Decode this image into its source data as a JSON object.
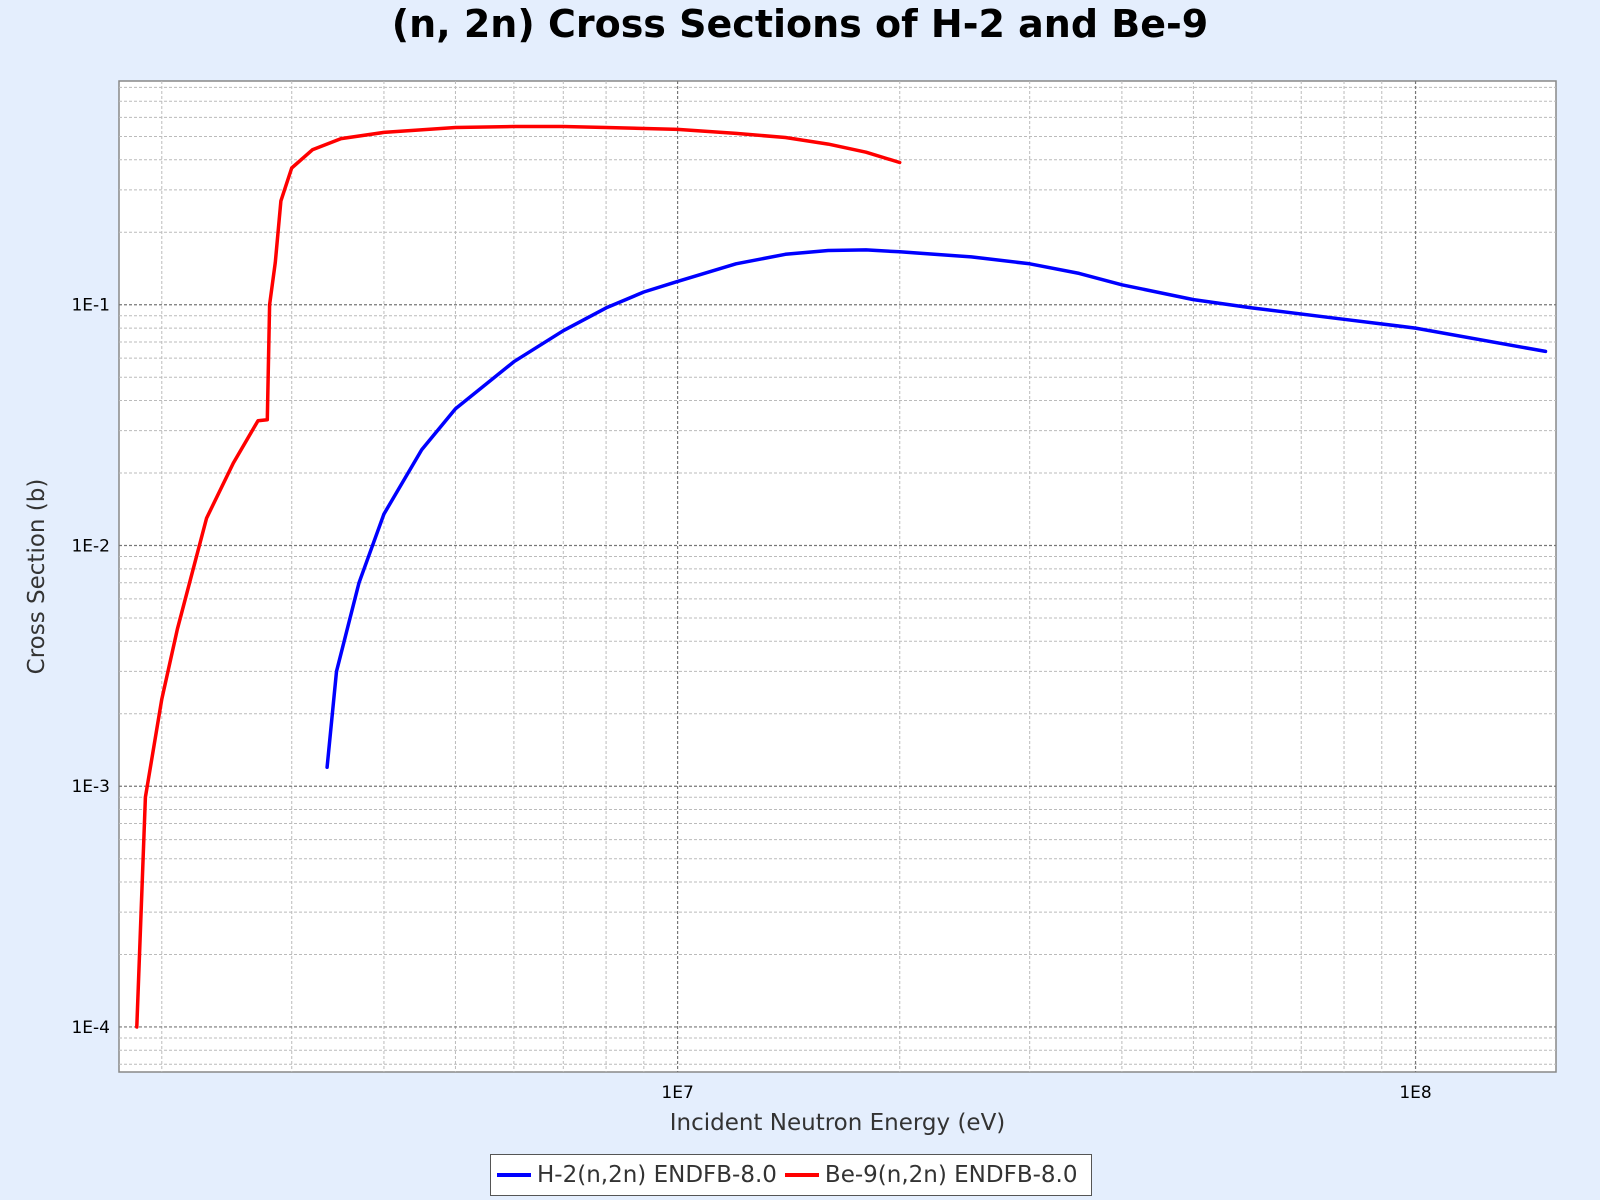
{
  "chart_data": {
    "type": "line",
    "title": "(n, 2n) Cross Sections of H-2 and Be-9",
    "xlabel": "Incident Neutron Energy (eV)",
    "ylabel": "Cross Section (b)",
    "x_scale": "log",
    "y_scale": "log",
    "xlim": [
      1750000.0,
      155000000.0
    ],
    "ylim": [
      6.5e-05,
      0.85
    ],
    "x_ticks": [
      {
        "value": 10000000.0,
        "label": "1E7"
      },
      {
        "value": 100000000.0,
        "label": "1E8"
      }
    ],
    "y_ticks": [
      {
        "value": 0.1,
        "label": "1E-1"
      },
      {
        "value": 0.01,
        "label": "1E-2"
      },
      {
        "value": 0.001,
        "label": "1E-3"
      },
      {
        "value": 0.0001,
        "label": "1E-4"
      }
    ],
    "grid": true,
    "legend_position": "bottom",
    "series": [
      {
        "name": "H-2(n,2n) ENDFB-8.0",
        "color": "#0000FF",
        "x": [
          3350000.0,
          3450000.0,
          3700000.0,
          4000000.0,
          4500000.0,
          5000000.0,
          6000000.0,
          7000000.0,
          8000000.0,
          9000000.0,
          10000000.0,
          12000000.0,
          14000000.0,
          16000000.0,
          18000000.0,
          20000000.0,
          25000000.0,
          30000000.0,
          35000000.0,
          40000000.0,
          50000000.0,
          60000000.0,
          80000000.0,
          100000000.0,
          150000000.0
        ],
        "y": [
          0.0012,
          0.003,
          0.007,
          0.0135,
          0.025,
          0.037,
          0.058,
          0.078,
          0.097,
          0.113,
          0.125,
          0.148,
          0.162,
          0.168,
          0.169,
          0.166,
          0.158,
          0.148,
          0.135,
          0.121,
          0.105,
          0.097,
          0.087,
          0.08,
          0.064
        ]
      },
      {
        "name": "Be-9(n,2n) ENDFB-8.0",
        "color": "#FF0000",
        "x": [
          1850000.0,
          1900000.0,
          2000000.0,
          2100000.0,
          2300000.0,
          2500000.0,
          2700000.0,
          2780000.0,
          2800000.0,
          2850000.0,
          2900000.0,
          3000000.0,
          3200000.0,
          3500000.0,
          4000000.0,
          5000000.0,
          6000000.0,
          7000000.0,
          8000000.0,
          10000000.0,
          12000000.0,
          14000000.0,
          16000000.0,
          18000000.0,
          20000000.0
        ],
        "y": [
          0.0001,
          0.0009,
          0.0023,
          0.0045,
          0.013,
          0.022,
          0.033,
          0.0333,
          0.1,
          0.15,
          0.27,
          0.37,
          0.44,
          0.49,
          0.52,
          0.545,
          0.55,
          0.55,
          0.545,
          0.535,
          0.515,
          0.495,
          0.465,
          0.43,
          0.39
        ]
      }
    ]
  }
}
